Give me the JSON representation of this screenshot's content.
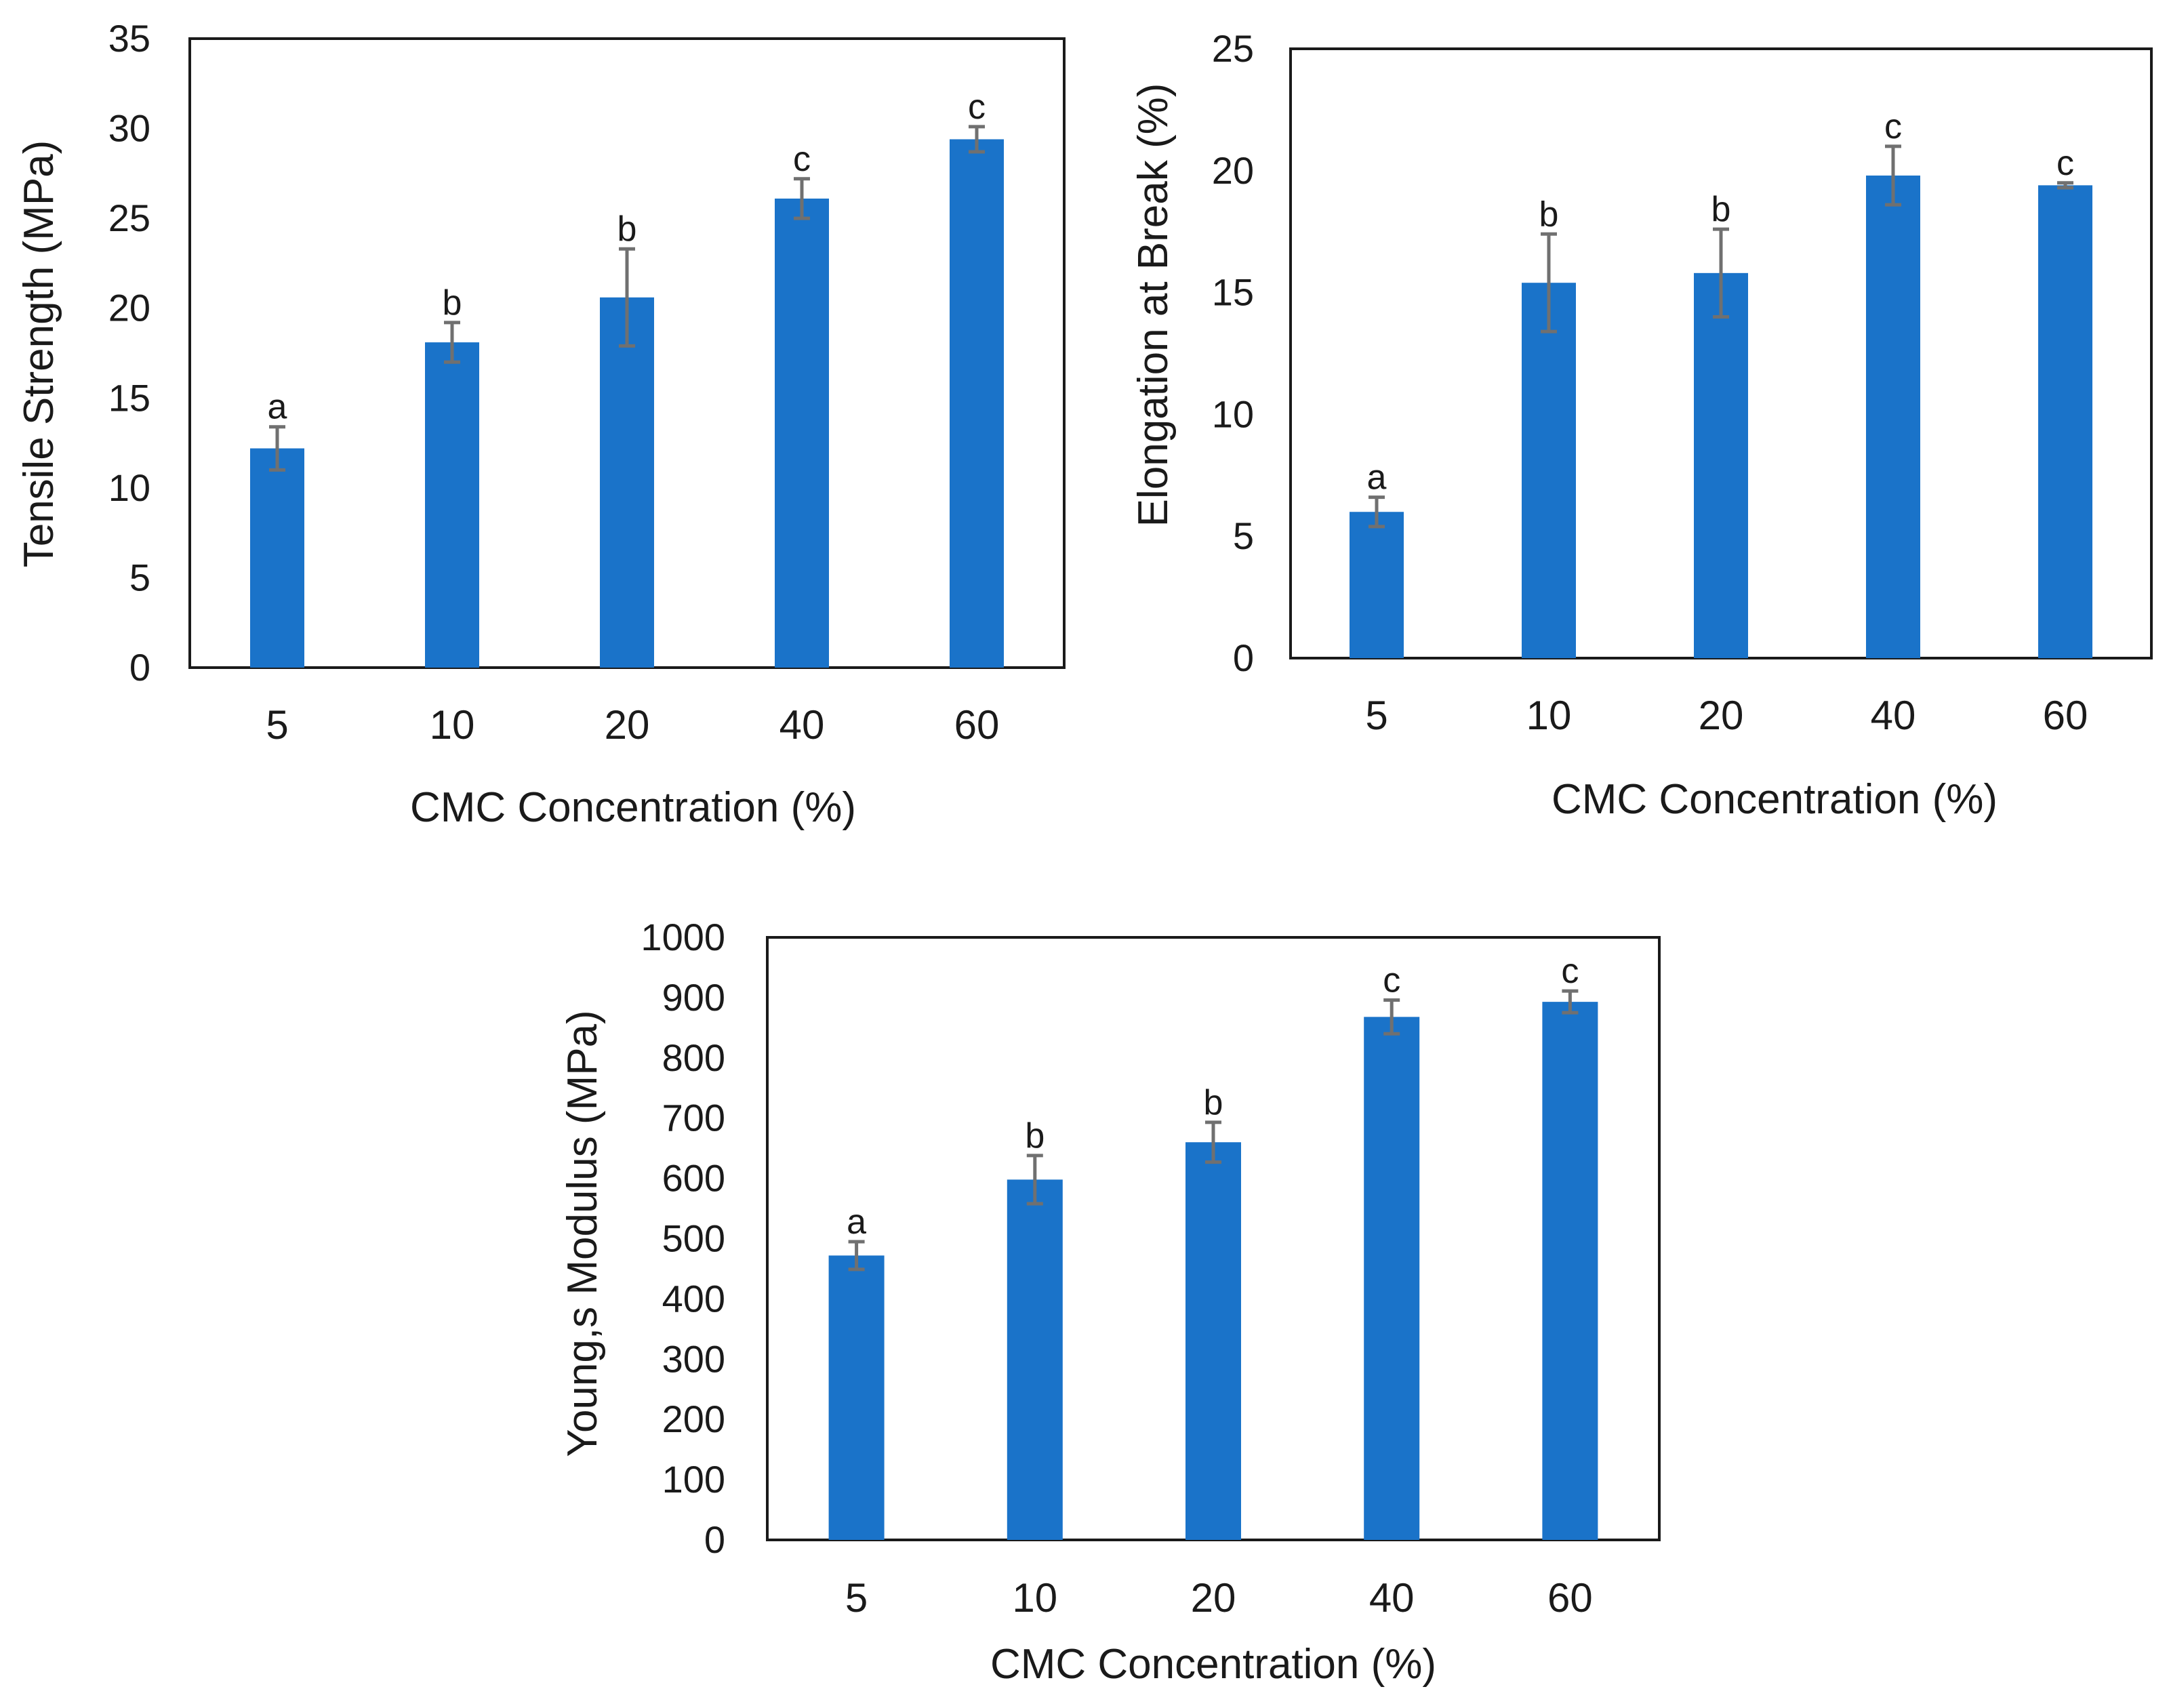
{
  "chart_data": [
    {
      "id": "tensile",
      "type": "bar",
      "categories": [
        "5",
        "10",
        "20",
        "40",
        "60"
      ],
      "values": [
        12.2,
        18.1,
        20.6,
        26.1,
        29.4
      ],
      "errors": [
        1.2,
        1.1,
        2.7,
        1.1,
        0.7
      ],
      "significance": [
        "a",
        "b",
        "b",
        "c",
        "c"
      ],
      "xlabel": "CMC Concentration (%)",
      "ylabel": "Tensile Strength (MPa)",
      "ylim": [
        0,
        35
      ],
      "yticks": [
        "0",
        "5",
        "10",
        "15",
        "20",
        "25",
        "30",
        "35"
      ],
      "color": "#1a73c9"
    },
    {
      "id": "elongation",
      "type": "bar",
      "categories": [
        "5",
        "10",
        "20",
        "40",
        "60"
      ],
      "values": [
        6.0,
        15.4,
        15.8,
        19.8,
        19.4
      ],
      "errors": [
        0.6,
        2.0,
        1.8,
        1.2,
        0.1
      ],
      "significance": [
        "a",
        "b",
        "b",
        "c",
        "c"
      ],
      "xlabel": "CMC Concentration (%)",
      "ylabel": "Elongation at Break (%)",
      "ylim": [
        0,
        25
      ],
      "yticks": [
        "0",
        "5",
        "10",
        "15",
        "20",
        "25"
      ],
      "color": "#1a73c9"
    },
    {
      "id": "youngs",
      "type": "bar",
      "categories": [
        "5",
        "10",
        "20",
        "40",
        "60"
      ],
      "values": [
        472,
        598,
        660,
        868,
        893
      ],
      "errors": [
        23,
        40,
        33,
        28,
        18
      ],
      "significance": [
        "a",
        "b",
        "b",
        "c",
        "c"
      ],
      "xlabel": "CMC Concentration (%)",
      "ylabel": "Young,s Modulus (MPa)",
      "ylim": [
        0,
        1000
      ],
      "yticks": [
        "0",
        "100",
        "200",
        "300",
        "400",
        "500",
        "600",
        "700",
        "800",
        "900",
        "1000"
      ],
      "color": "#1a73c9"
    }
  ]
}
